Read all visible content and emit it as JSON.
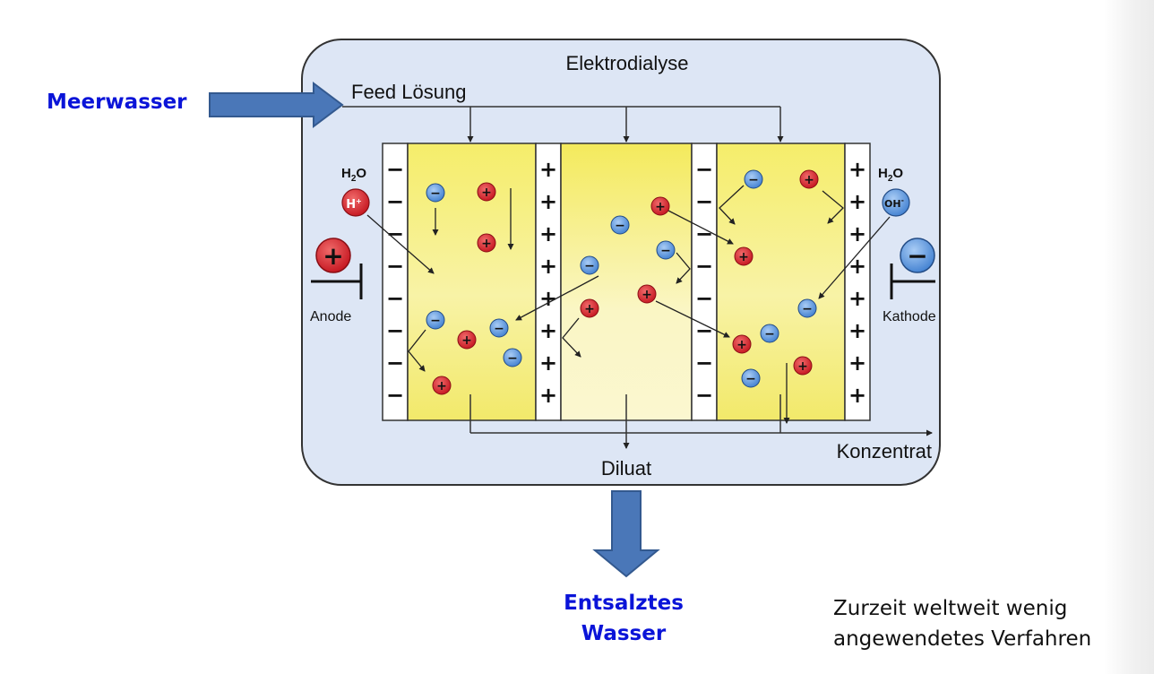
{
  "left_label": "Meerwasser",
  "output_label": {
    "line1": "Entsalztes",
    "line2": "Wasser"
  },
  "note": {
    "line1": "Zurzeit weltweit wenig",
    "line2": "angewendetes Verfahren"
  },
  "diagram": {
    "title": "Elektrodialyse",
    "feed_label": "Feed Lösung",
    "diluat_label": "Diluat",
    "konzentrat_label": "Konzentrat",
    "anode_label": "Anode",
    "kathode_label": "Kathode",
    "h2o_left": "H",
    "h2o_right": "H",
    "h2o_sub": "2",
    "h2o_o": "O",
    "h_ion": "H",
    "oh_ion": "OH",
    "ion_charge_plus": "+",
    "ion_charge_minus": "-",
    "plus_sign": "+",
    "minus_sign": "−",
    "colors": {
      "panel_bg": "#dde6f5",
      "chamber_yellow": "#f5ed7a",
      "cation_red": "#d21f2b",
      "anion_blue": "#4f8fdb",
      "arrow_blue": "#4a77b8",
      "label_blue": "#0a14d8"
    }
  }
}
